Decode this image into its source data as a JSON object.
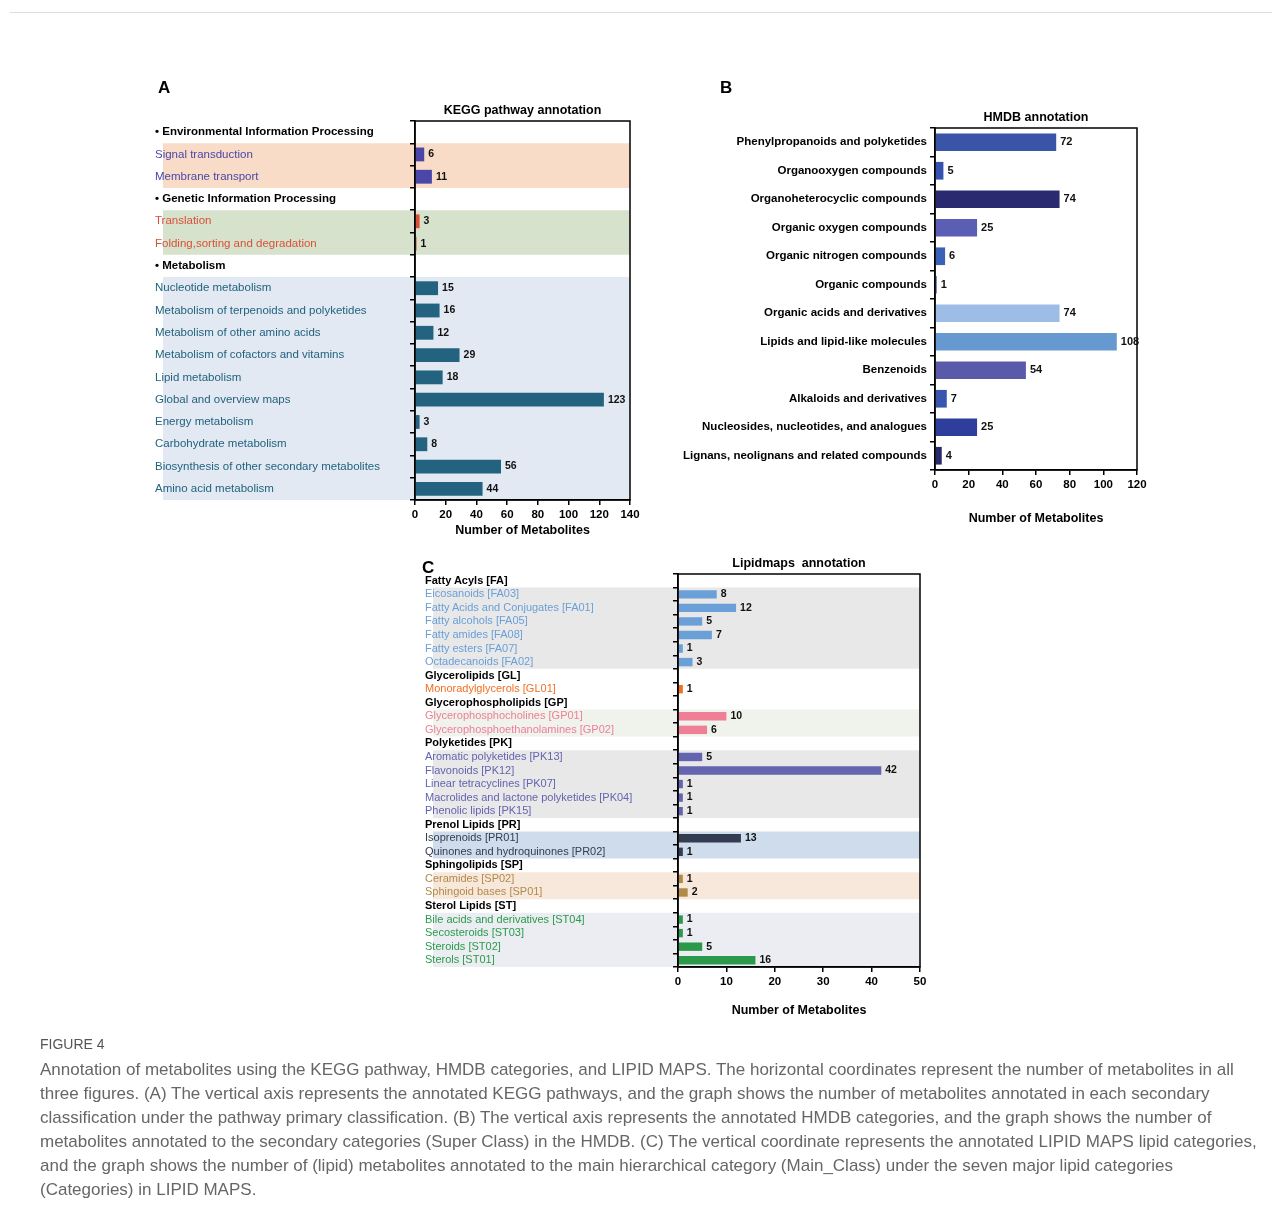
{
  "chart_data": [
    {
      "type": "bar",
      "orientation": "horizontal",
      "title": "KEGG pathway annotation",
      "xlabel": "Number of Metabolites",
      "categories": [
        "• Environmental Information Processing",
        "Signal transduction",
        "Membrane transport",
        "• Genetic Information Processing",
        "Translation",
        "Folding,sorting and degradation",
        "• Metabolism",
        "Nucleotide metabolism",
        "Metabolism of terpenoids and polyketides",
        "Metabolism of other amino acids",
        "Metabolism of cofactors and vitamins",
        "Lipid metabolism",
        "Global and overview maps",
        "Energy metabolism",
        "Carbohydrate metabolism",
        "Biosynthesis of other secondary metabolites",
        "Amino acid metabolism"
      ],
      "values": [
        null,
        6,
        11,
        null,
        3,
        1,
        null,
        15,
        16,
        12,
        29,
        18,
        123,
        3,
        8,
        56,
        44
      ],
      "colors": [
        "#000000",
        "#4a47a8",
        "#4a47a8",
        "#000000",
        "#d9503a",
        "#d9503a",
        "#000000",
        "#236380",
        "#236380",
        "#236380",
        "#236380",
        "#236380",
        "#236380",
        "#236380",
        "#236380",
        "#236380",
        "#236380"
      ],
      "xlim": [
        0,
        140
      ],
      "xticks": [
        0,
        20,
        40,
        60,
        80,
        100,
        120,
        140
      ],
      "data_labels": true,
      "bands": [
        {
          "axis": "y",
          "from": "Signal transduction",
          "to": "Membrane transport",
          "color": "#f8dcc8"
        },
        {
          "axis": "y",
          "from": "Translation",
          "to": "Folding,sorting and degradation",
          "color": "#d6e2cc"
        },
        {
          "axis": "y",
          "from": "Nucleotide metabolism",
          "to": "Amino acid metabolism",
          "color": "#e2e9f2"
        }
      ],
      "annotations": [
        "A"
      ]
    },
    {
      "type": "bar",
      "orientation": "horizontal",
      "title": "HMDB annotation",
      "xlabel": "Number of Metabolites",
      "categories": [
        "Phenylpropanoids and polyketides",
        "Organooxygen compounds",
        "Organoheterocyclic compounds",
        "Organic oxygen compounds",
        "Organic nitrogen compounds",
        "Organic compounds",
        "Organic acids and derivatives",
        "Lipids and lipid-like molecules",
        "Benzenoids",
        "Alkaloids and derivatives",
        "Nucleosides, nucleotides, and analogues",
        "Lignans, neolignans and related compounds"
      ],
      "values": [
        72,
        5,
        74,
        25,
        6,
        1,
        74,
        108,
        54,
        7,
        25,
        4
      ],
      "colors": [
        "#3a55a8",
        "#3552b0",
        "#2a2a70",
        "#5a5fb5",
        "#3a60b8",
        "#3a55a8",
        "#9dbde6",
        "#6699d0",
        "#5a5aab",
        "#3a55b0",
        "#2d3e9c",
        "#2a2a6a"
      ],
      "xlim": [
        0,
        120
      ],
      "xticks": [
        0,
        20,
        40,
        60,
        80,
        100,
        120
      ],
      "data_labels": true,
      "annotations": [
        "B"
      ]
    },
    {
      "type": "bar",
      "orientation": "horizontal",
      "title": "Lipidmaps  annotation",
      "xlabel": "Number of Metabolites",
      "categories": [
        "Fatty Acyls [FA]",
        "Eicosanoids [FA03]",
        "Fatty Acids and Conjugates [FA01]",
        "Fatty alcohols [FA05]",
        "Fatty amides [FA08]",
        "Fatty esters [FA07]",
        "Octadecanoids [FA02]",
        "Glycerolipids [GL]",
        "Monoradylglycerols [GL01]",
        "Glycerophospholipids [GP]",
        "Glycerophosphocholines [GP01]",
        "Glycerophosphoethanolamines [GP02]",
        "Polyketides [PK]",
        "Aromatic polyketides [PK13]",
        "Flavonoids [PK12]",
        "Linear tetracyclines [PK07]",
        "Macrolides and lactone polyketides [PK04]",
        "Phenolic lipids [PK15]",
        "Prenol Lipids [PR]",
        "Isoprenoids [PR01]",
        "Quinones and hydroquinones [PR02]",
        "Sphingolipids [SP]",
        "Ceramides [SP02]",
        "Sphingoid bases [SP01]",
        "Sterol Lipids [ST]",
        "Bile acids and derivatives [ST04]",
        "Secosteroids [ST03]",
        "Steroids [ST02]",
        "Sterols [ST01]"
      ],
      "values": [
        null,
        8,
        12,
        5,
        7,
        1,
        3,
        null,
        1,
        null,
        10,
        6,
        null,
        5,
        42,
        1,
        1,
        1,
        null,
        13,
        1,
        null,
        1,
        2,
        null,
        1,
        1,
        5,
        16
      ],
      "colors": [
        "#000000",
        "#6a9fd8",
        "#6a9fd8",
        "#6a9fd8",
        "#6a9fd8",
        "#6a9fd8",
        "#6a9fd8",
        "#000000",
        "#f07020",
        "#000000",
        "#ee7f97",
        "#ee7f97",
        "#000000",
        "#6464b0",
        "#6464b0",
        "#6464b0",
        "#6464b0",
        "#6464b0",
        "#000000",
        "#333c50",
        "#333c50",
        "#000000",
        "#b08a48",
        "#b08a48",
        "#000000",
        "#2a9a4a",
        "#2a9a4a",
        "#2a9a4a",
        "#2a9a4a"
      ],
      "xlim": [
        0,
        50
      ],
      "xticks": [
        0,
        10,
        20,
        30,
        40,
        50
      ],
      "data_labels": true,
      "bands": [
        {
          "axis": "y",
          "from": "Eicosanoids [FA03]",
          "to": "Octadecanoids [FA02]",
          "color": "#e8e8e8"
        },
        {
          "axis": "y",
          "from": "Glycerophosphocholines [GP01]",
          "to": "Glycerophosphoethanolamines [GP02]",
          "color": "#eff3ec"
        },
        {
          "axis": "y",
          "from": "Aromatic polyketides [PK13]",
          "to": "Phenolic lipids [PK15]",
          "color": "#e8e8e8"
        },
        {
          "axis": "y",
          "from": "Isoprenoids [PR01]",
          "to": "Quinones and hydroquinones [PR02]",
          "color": "#cfdcec"
        },
        {
          "axis": "y",
          "from": "Ceramides [SP02]",
          "to": "Sphingoid bases [SP01]",
          "color": "#f8e8dc"
        },
        {
          "axis": "y",
          "from": "Bile acids and derivatives [ST04]",
          "to": "Sterols [ST01]",
          "color": "#ebedf2"
        }
      ],
      "annotations": [
        "C",
        "FIGURE 4",
        "Annotation of metabolites using the KEGG pathway, HMDB categories, and LIPID MAPS. The horizontal coordinates represent the number of metabolites in all three figures. (A) The vertical axis represents the annotated KEGG pathways, and the graph shows the number of metabolites annotated in each secondary classification under the pathway primary classification. (B) The vertical axis represents the annotated HMDB categories, and the graph shows the number of metabolites annotated to the secondary categories (Super Class) in the HMDB. (C) The vertical coordinate represents the annotated LIPID MAPS lipid categories, and the graph shows the number of (lipid) metabolites annotated to the main hierarchical category (Main_Class) under the seven major lipid categories (Categories) in LIPID MAPS."
      ]
    }
  ]
}
